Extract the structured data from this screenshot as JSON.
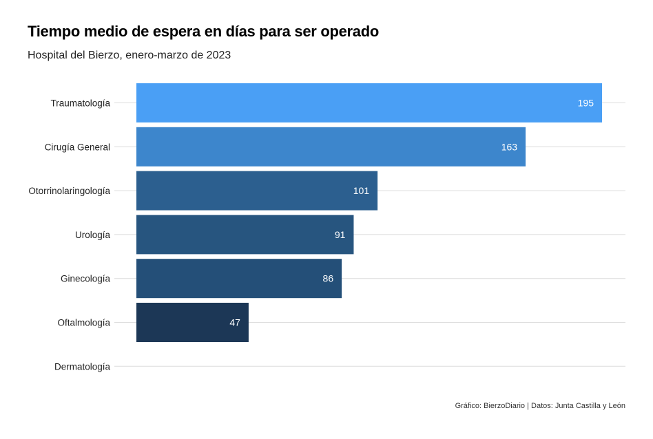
{
  "chart_data": {
    "type": "bar",
    "orientation": "horizontal",
    "title": "Tiempo medio de espera en días para ser operado",
    "subtitle": "Hospital del Bierzo, enero-marzo de 2023",
    "caption": "Gráfico: BierzoDiario | Datos: Junta Castilla y León",
    "categories": [
      "Traumatología",
      "Cirugía General",
      "Otorrinolaringología",
      "Urología",
      "Ginecología",
      "Oftalmología",
      "Dermatología"
    ],
    "values": [
      195,
      163,
      101,
      91,
      86,
      47,
      0
    ],
    "data_labels": [
      "195",
      "163",
      "101",
      "91",
      "86",
      "47",
      ""
    ],
    "colors": [
      "#4a9ff5",
      "#3d86cc",
      "#2c5f8f",
      "#27557f",
      "#244f78",
      "#1c3756",
      "#1c3756"
    ],
    "xlim": [
      0,
      195
    ],
    "grid": "horizontal",
    "legend": "none"
  }
}
